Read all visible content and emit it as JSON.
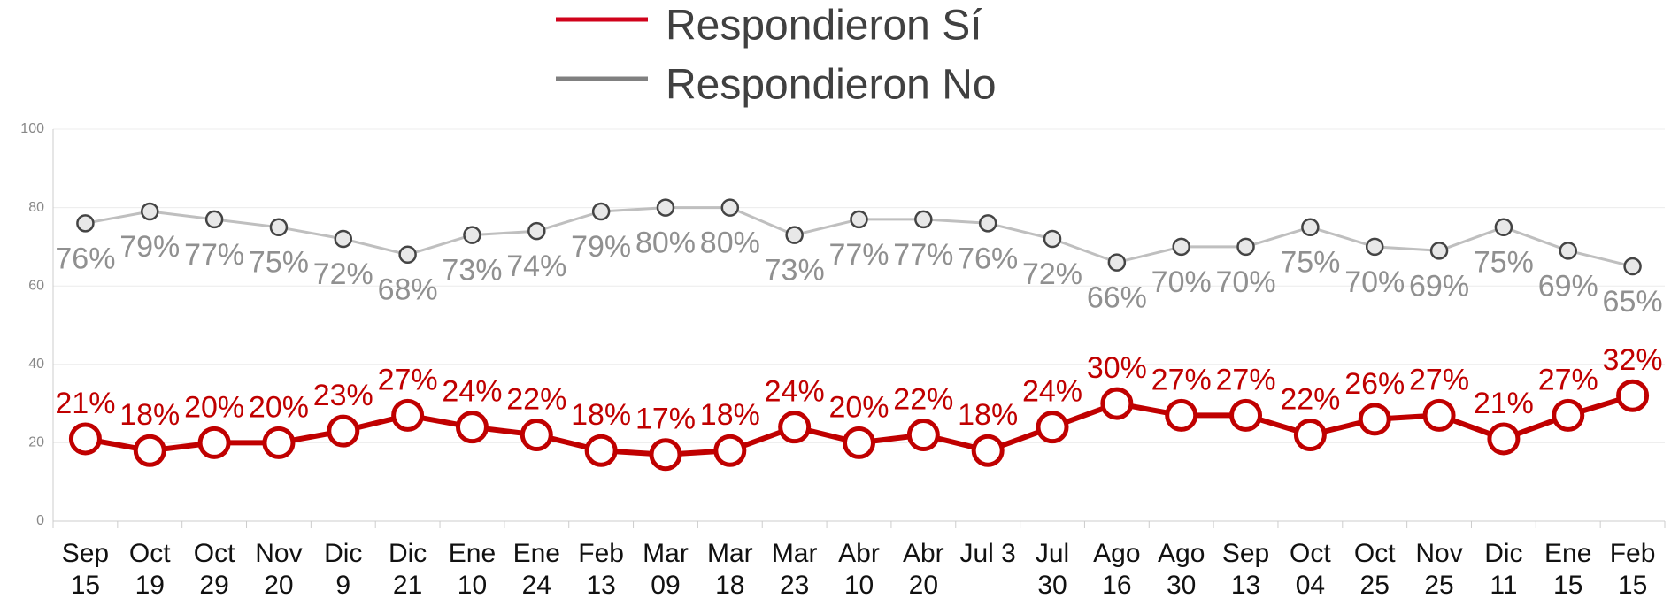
{
  "chart_data": {
    "type": "line",
    "categories": [
      [
        "Sep",
        "15"
      ],
      [
        "Oct",
        "19"
      ],
      [
        "Oct",
        "29"
      ],
      [
        "Nov",
        "20"
      ],
      [
        "Dic",
        "9"
      ],
      [
        "Dic",
        "21"
      ],
      [
        "Ene",
        "10"
      ],
      [
        "Ene",
        "24"
      ],
      [
        "Feb",
        "13"
      ],
      [
        "Mar",
        "09"
      ],
      [
        "Mar",
        "18"
      ],
      [
        "Mar",
        "23"
      ],
      [
        "Abr",
        "10"
      ],
      [
        "Abr",
        "20"
      ],
      [
        "Jul 3"
      ],
      [
        "Jul",
        "30"
      ],
      [
        "Ago",
        "16"
      ],
      [
        "Ago",
        "30"
      ],
      [
        "Sep",
        "13"
      ],
      [
        "Oct",
        "04"
      ],
      [
        "Oct",
        "25"
      ],
      [
        "Nov",
        "25"
      ],
      [
        "Dic",
        "11"
      ],
      [
        "Ene",
        "15"
      ],
      [
        "Feb",
        "15"
      ]
    ],
    "series": [
      {
        "name": "Respondieron Sí",
        "color": "#c00000",
        "values": [
          21,
          18,
          20,
          20,
          23,
          27,
          24,
          22,
          18,
          17,
          18,
          24,
          20,
          22,
          18,
          24,
          30,
          27,
          27,
          22,
          26,
          27,
          21,
          27,
          32
        ],
        "value_labels": [
          "21%",
          "18%",
          "20%",
          "20%",
          "23%",
          "27%",
          "24%",
          "22%",
          "18%",
          "17%",
          "18%",
          "24%",
          "20%",
          "22%",
          "18%",
          "24%",
          "30%",
          "27%",
          "27%",
          "22%",
          "26%",
          "27%",
          "21%",
          "27%",
          "32%"
        ]
      },
      {
        "name": "Respondieron No",
        "color": "#808080",
        "values": [
          76,
          79,
          77,
          75,
          72,
          68,
          73,
          74,
          79,
          80,
          80,
          73,
          77,
          77,
          76,
          72,
          66,
          70,
          70,
          75,
          70,
          69,
          75,
          69,
          65
        ],
        "value_labels": [
          "76%",
          "79%",
          "77%",
          "75%",
          "72%",
          "68%",
          "73%",
          "74%",
          "79%",
          "80%",
          "80%",
          "73%",
          "77%",
          "77%",
          "76%",
          "72%",
          "66%",
          "70%",
          "70%",
          "75%",
          "70%",
          "69%",
          "75%",
          "69%",
          "65%"
        ]
      }
    ],
    "ylim": [
      0,
      100
    ],
    "yticks": [
      0,
      20,
      40,
      60,
      80,
      100
    ],
    "grid": true
  }
}
